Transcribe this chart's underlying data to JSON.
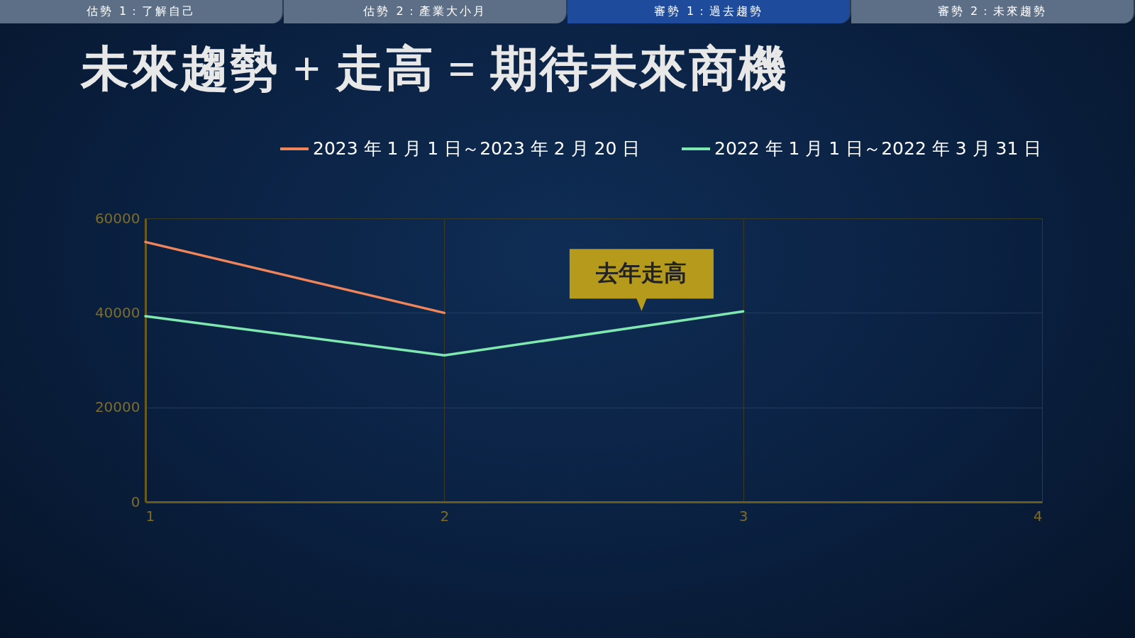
{
  "chart_data": {
    "type": "line",
    "title": "未來趨勢 + 走高 = 期待未來商機",
    "x": [
      1,
      2,
      3
    ],
    "series": [
      {
        "name": "2023 年 1 月 1 日～2023 年 2 月 20 日",
        "color": "#f0845a",
        "values": [
          55000,
          40000,
          null
        ]
      },
      {
        "name": "2022 年 1 月 1 日～2022 年 3 月 31 日",
        "color": "#7ee8b0",
        "values": [
          39300,
          31000,
          40300
        ]
      }
    ],
    "xlim": [
      1,
      4
    ],
    "xticks": [
      1,
      2,
      3,
      4
    ],
    "ylim": [
      0,
      60000
    ],
    "yticks": [
      0,
      20000,
      40000,
      60000
    ],
    "grid": true,
    "legend": "top",
    "marker": "none",
    "line_style": "solid",
    "annotations": [
      "估勢 1：了解自己",
      "估勢 2：產業大小月",
      "審勢 1：過去趨勢",
      "審勢 2：未來趨勢",
      {
        "text": "去年走高",
        "x": 2.66,
        "y": 37000
      }
    ]
  }
}
